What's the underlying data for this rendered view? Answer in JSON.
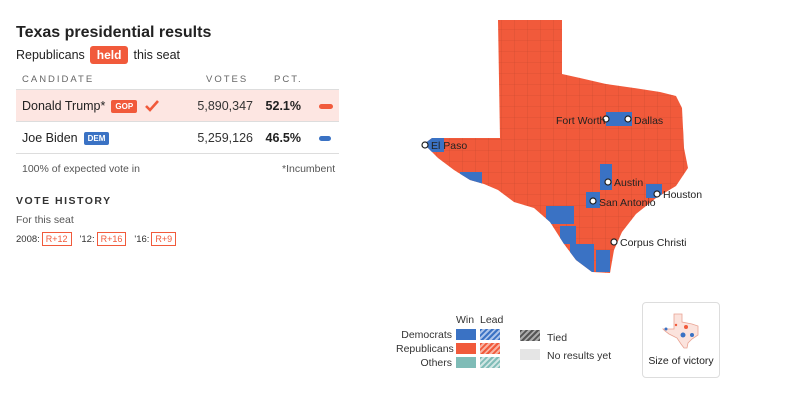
{
  "header": {
    "title": "Texas presidential results",
    "subtitle_prefix": "Republicans",
    "subtitle_badge": "held",
    "subtitle_suffix": "this seat"
  },
  "table": {
    "col_candidate": "CANDIDATE",
    "col_votes": "VOTES",
    "col_pct": "PCT.",
    "rows": [
      {
        "name": "Donald Trump*",
        "party": "GOP",
        "votes": "5,890,347",
        "pct": "52.1%",
        "pct_value": 52.1,
        "winner": true,
        "color": "#f15a3b"
      },
      {
        "name": "Joe Biden",
        "party": "DEM",
        "votes": "5,259,126",
        "pct": "46.5%",
        "pct_value": 46.5,
        "winner": false,
        "color": "#3a72c4"
      }
    ],
    "expected_vote": "100% of expected vote in",
    "incumbent_note": "*Incumbent"
  },
  "vote_history": {
    "title": "VOTE HISTORY",
    "subtitle": "For this seat",
    "items": [
      {
        "year": "2008:",
        "margin": "R+12"
      },
      {
        "year": "'12:",
        "margin": "R+16"
      },
      {
        "year": "'16:",
        "margin": "R+9"
      }
    ]
  },
  "map": {
    "colors": {
      "republican": "#f15a3b",
      "democrat": "#3a72c4",
      "outline": "#c94a30"
    },
    "cities": [
      "Fort Worth",
      "Dallas",
      "El Paso",
      "Austin",
      "Houston",
      "San Antonio",
      "Corpus Christi"
    ]
  },
  "legend": {
    "win": "Win",
    "lead": "Lead",
    "democrats": "Democrats",
    "republicans": "Republicans",
    "others": "Others",
    "tied": "Tied",
    "no_results": "No results yet",
    "colors": {
      "democrat": "#3a72c4",
      "republican": "#f15a3b",
      "other": "#7fbcb7",
      "no_results": "#e5e5e5"
    }
  },
  "size_of_victory": {
    "label": "Size of victory"
  }
}
